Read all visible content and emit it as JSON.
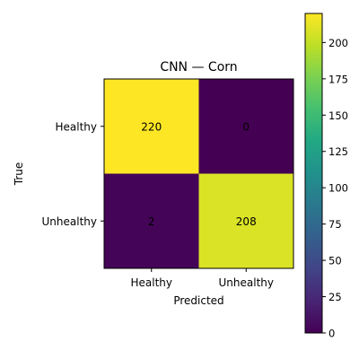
{
  "chart_data": {
    "type": "heatmap",
    "title": "CNN — Corn",
    "xlabel": "Predicted",
    "ylabel": "True",
    "x_categories": [
      "Healthy",
      "Unhealthy"
    ],
    "y_categories": [
      "Healthy",
      "Unhealthy"
    ],
    "values": [
      [
        220,
        0
      ],
      [
        2,
        208
      ]
    ],
    "colormap": "viridis",
    "colorbar": {
      "min": 0,
      "max": 220,
      "ticks": [
        0,
        25,
        50,
        75,
        100,
        125,
        150,
        175,
        200
      ]
    }
  }
}
